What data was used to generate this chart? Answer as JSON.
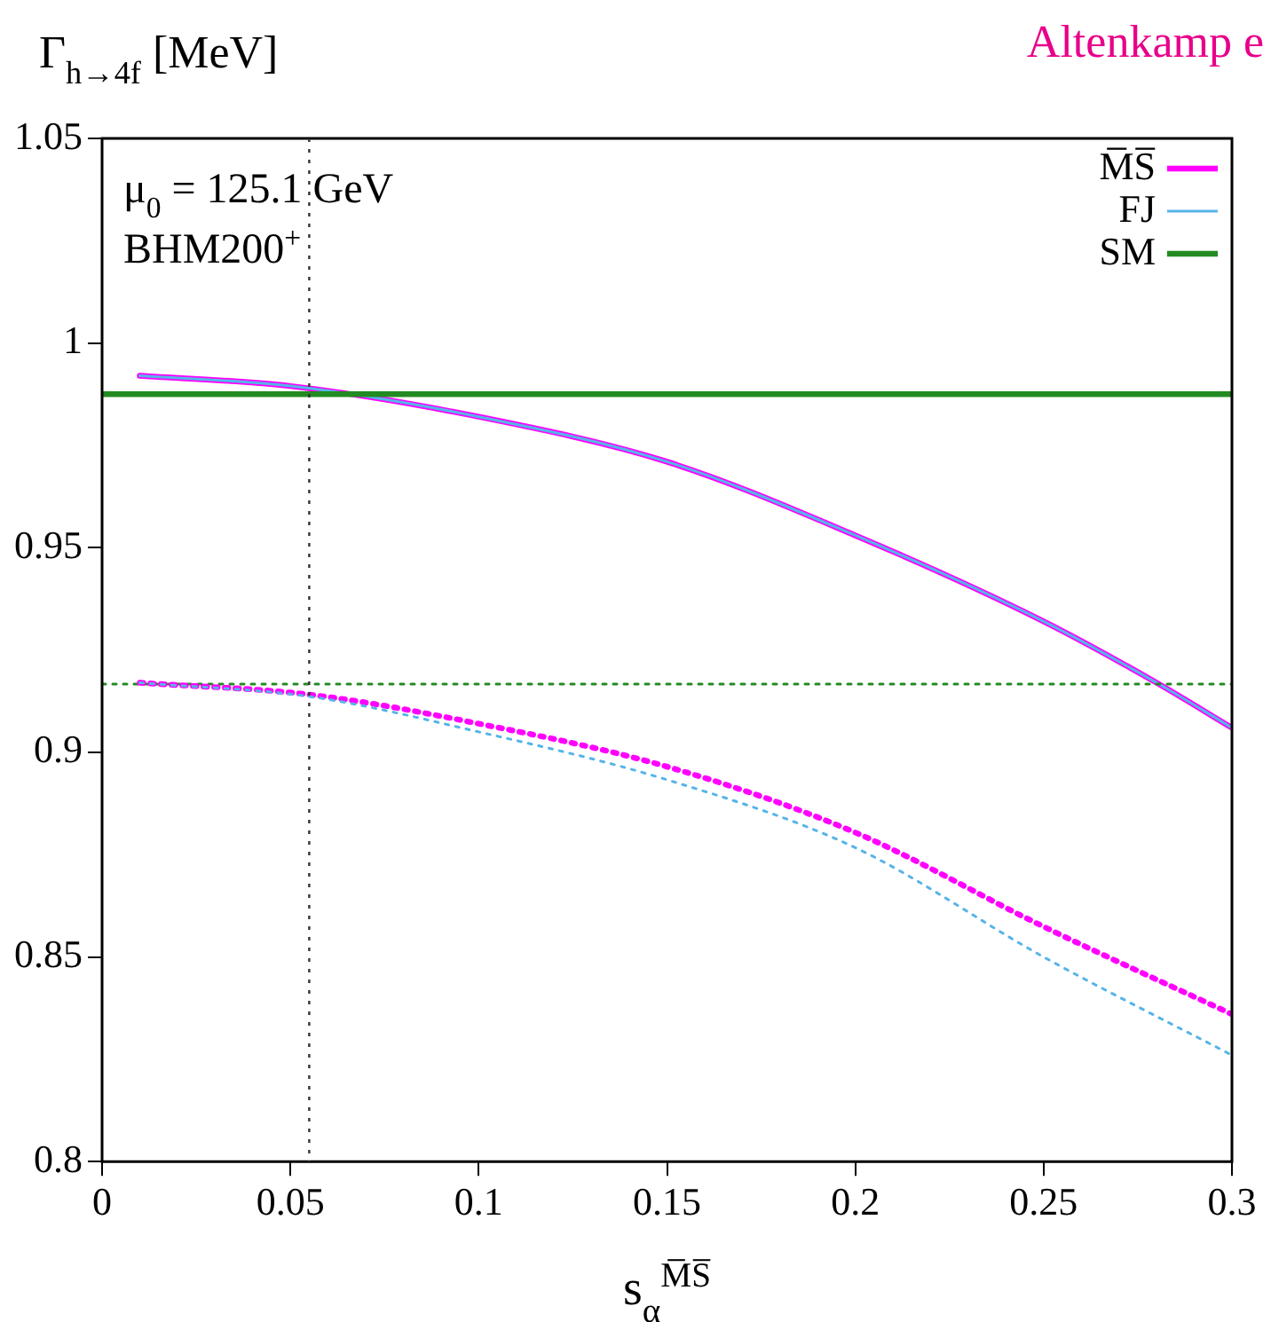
{
  "chart_data": {
    "type": "line",
    "title": "Altenkamp e",
    "xlabel": "s$_{α}$$^{M̅S̅}$",
    "ylabel": "Γ$_{h→4f}$ [MeV]",
    "annotations": [
      "μ$_{0}$ = 125.1 GeV",
      "BHM200$^{+}$"
    ],
    "series": [
      {
        "name": "M̅S̅",
        "color": "#ff00ff",
        "line_style": "solid",
        "x": [
          0.01,
          0.05,
          0.1,
          0.15,
          0.2,
          0.25,
          0.28,
          0.3
        ],
        "values": [
          0.992,
          0.9895,
          0.982,
          0.971,
          0.953,
          0.932,
          0.917,
          0.906
        ]
      },
      {
        "name": "FJ",
        "color": "#56b4e9",
        "line_style": "solid",
        "x": [
          0.01,
          0.05,
          0.1,
          0.15,
          0.2,
          0.25,
          0.28,
          0.3
        ],
        "values": [
          0.992,
          0.9895,
          0.982,
          0.971,
          0.953,
          0.932,
          0.917,
          0.906
        ]
      },
      {
        "name": "SM",
        "color": "#228b22",
        "line_style": "solid",
        "x": [
          0,
          0.3
        ],
        "values": [
          0.9875,
          0.9875
        ]
      },
      {
        "color": "#228b22",
        "line_style": "dotted",
        "x": [
          0,
          0.3
        ],
        "values": [
          0.9167,
          0.9167
        ]
      },
      {
        "color": "#ff00ff",
        "line_style": "dotted",
        "x": [
          0.01,
          0.056,
          0.1,
          0.15,
          0.2,
          0.25,
          0.3
        ],
        "values": [
          0.917,
          0.914,
          0.907,
          0.8965,
          0.8804,
          0.8574,
          0.836
        ]
      },
      {
        "color": "#56b4e9",
        "line_style": "dotted",
        "x": [
          0.01,
          0.056,
          0.1,
          0.15,
          0.2,
          0.25,
          0.3
        ],
        "values": [
          0.917,
          0.9135,
          0.905,
          0.8933,
          0.8767,
          0.85,
          0.826
        ]
      }
    ],
    "ref_lines": [
      {
        "axis": "x",
        "value": 0.055,
        "color": "#333333",
        "line_style": "dotted"
      }
    ],
    "xlim": [
      0,
      0.3
    ],
    "xticks": [
      0,
      0.05,
      0.1,
      0.15,
      0.2,
      0.25,
      0.3
    ],
    "ylim": [
      0.8,
      1.05
    ],
    "yticks": [
      0.8,
      0.85,
      0.9,
      0.95,
      1,
      1.05
    ],
    "grid": false,
    "legend": "top right",
    "marker": "none"
  }
}
